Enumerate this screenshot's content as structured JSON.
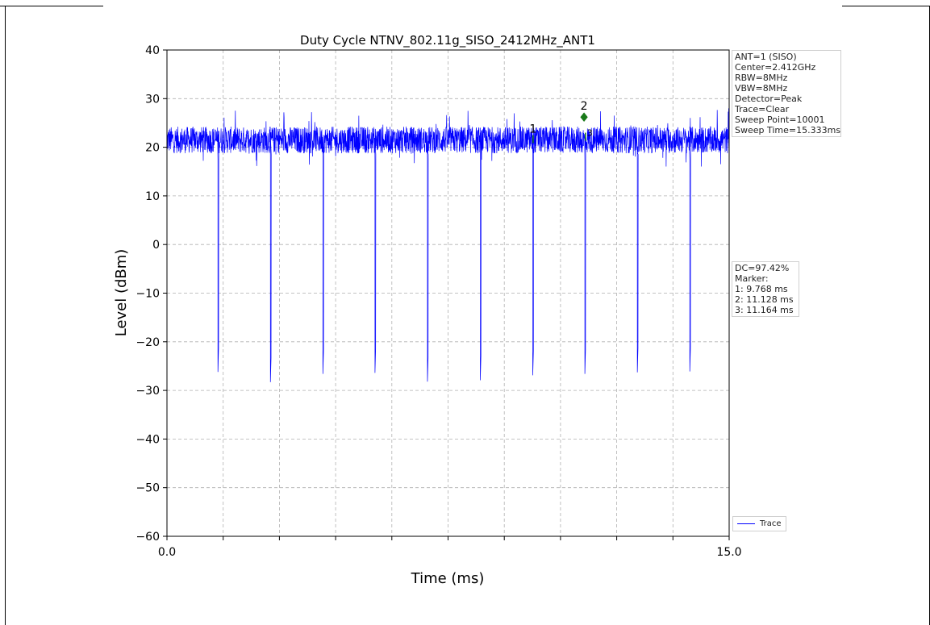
{
  "chart_data": {
    "type": "line",
    "title": "Duty Cycle NTNV_802.11g_SISO_2412MHz_ANT1",
    "xlabel": "Time (ms)",
    "ylabel": "Level (dBm)",
    "xlim": [
      0,
      15
    ],
    "ylim": [
      -60,
      40
    ],
    "x_tick_labels": [
      "0.0",
      "15.0"
    ],
    "y_ticks": [
      40,
      30,
      20,
      10,
      0,
      -10,
      -20,
      -30,
      -40,
      -50,
      -60
    ],
    "y_tick_labels": [
      "40",
      "30",
      "20",
      "10",
      "0",
      "−10",
      "−20",
      "−30",
      "−40",
      "−50",
      "−60"
    ],
    "grid": true,
    "legend_position": "bottom-right",
    "series": [
      {
        "name": "Trace",
        "color": "#0000ff",
        "baseline_level": 21.5,
        "noise_range": [
          16,
          28
        ],
        "dip_times_ms": [
          1.36,
          2.76,
          4.16,
          5.55,
          6.95,
          8.36,
          9.76,
          11.15,
          12.55,
          13.95
        ],
        "dip_levels_dbm": [
          -26.2,
          -28.3,
          -26.6,
          -26.4,
          -28.2,
          -27.9,
          -26.9,
          -26.6,
          -26.3,
          -26.1
        ]
      }
    ],
    "markers": [
      {
        "label": "1",
        "time_ms": 9.768,
        "level_dbm": 21.5
      },
      {
        "label": "2",
        "time_ms": 11.128,
        "level_dbm": 26.2
      },
      {
        "label": "3",
        "time_ms": 11.164,
        "level_dbm": 22.0
      }
    ]
  },
  "info_box": [
    "ANT=1 (SISO)",
    "Center=2.412GHz",
    "RBW=8MHz",
    "VBW=8MHz",
    "Detector=Peak",
    "Trace=Clear",
    "Sweep Point=10001",
    "Sweep Time=15.333ms"
  ],
  "dc_box": [
    "DC=97.42%",
    "Marker:",
    "1: 9.768 ms",
    "2: 11.128 ms",
    "3: 11.164 ms"
  ],
  "legend": {
    "label": "Trace",
    "color": "#0000ff"
  },
  "colors": {
    "trace": "#0000ff",
    "marker": "#1a7a1a",
    "grid": "#b0b0b0"
  }
}
